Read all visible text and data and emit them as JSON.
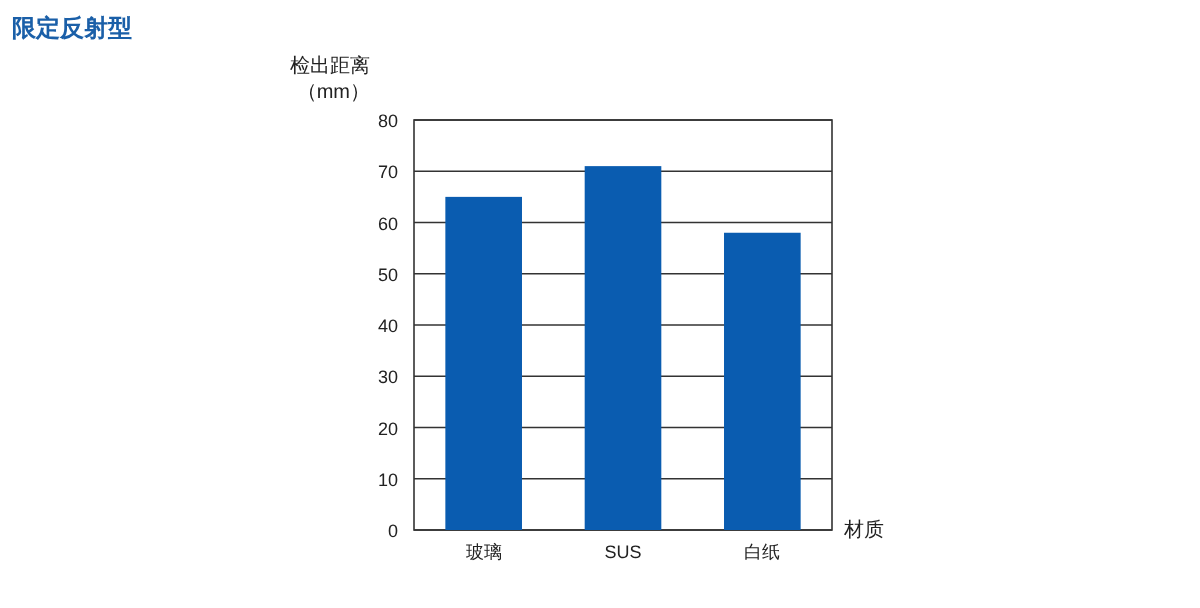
{
  "chart_data": {
    "type": "bar",
    "title": "限定反射型",
    "ylabel": "检出距离（mm）",
    "xlabel": "材质",
    "categories": [
      "玻璃",
      "SUS",
      "白纸"
    ],
    "values": [
      65,
      71,
      58
    ],
    "color": "#0a5cb0",
    "ylim": [
      0,
      80
    ],
    "yticks": [
      0,
      10,
      20,
      30,
      40,
      50,
      60,
      70,
      80
    ],
    "grid": "y"
  }
}
